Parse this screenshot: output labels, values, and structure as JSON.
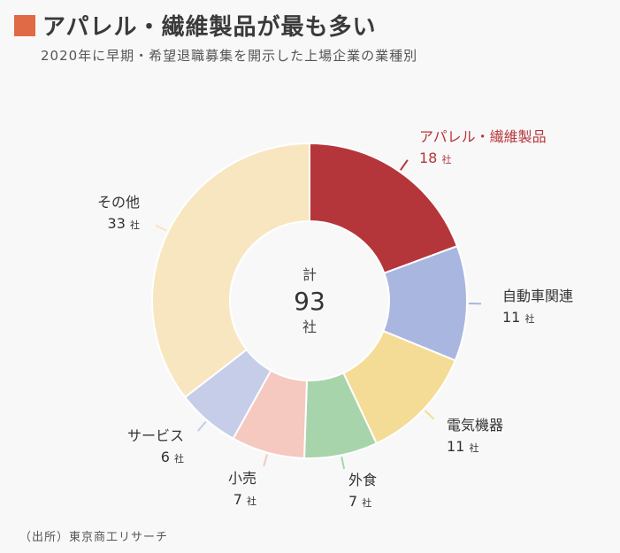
{
  "header": {
    "title": "アパレル・繊維製品が最も多い",
    "subtitle": "2020年に早期・希望退職募集を開示した上場企業の業種別",
    "accent_color": "#e06a45"
  },
  "center_label": {
    "top": "計",
    "total": "93",
    "unit": "社"
  },
  "value_unit": "社",
  "source": "（出所）東京商工リサーチ",
  "chart_data": {
    "type": "pie",
    "variant": "donut",
    "title": "",
    "total": 93,
    "slices": [
      {
        "label": "アパレル・繊維製品",
        "value": 18,
        "color": "#b5363a",
        "label_color": "#b5363a"
      },
      {
        "label": "自動車関連",
        "value": 11,
        "color": "#a9b6e0",
        "label_color": "#333333"
      },
      {
        "label": "電気機器",
        "value": 11,
        "color": "#f5dc96",
        "label_color": "#333333"
      },
      {
        "label": "外食",
        "value": 7,
        "color": "#a8d4ab",
        "label_color": "#333333"
      },
      {
        "label": "小売",
        "value": 7,
        "color": "#f5c8c0",
        "label_color": "#333333"
      },
      {
        "label": "サービス",
        "value": 6,
        "color": "#c5cde8",
        "label_color": "#333333"
      },
      {
        "label": "その他",
        "value": 33,
        "color": "#f7e6c0",
        "label_color": "#333333"
      }
    ]
  }
}
